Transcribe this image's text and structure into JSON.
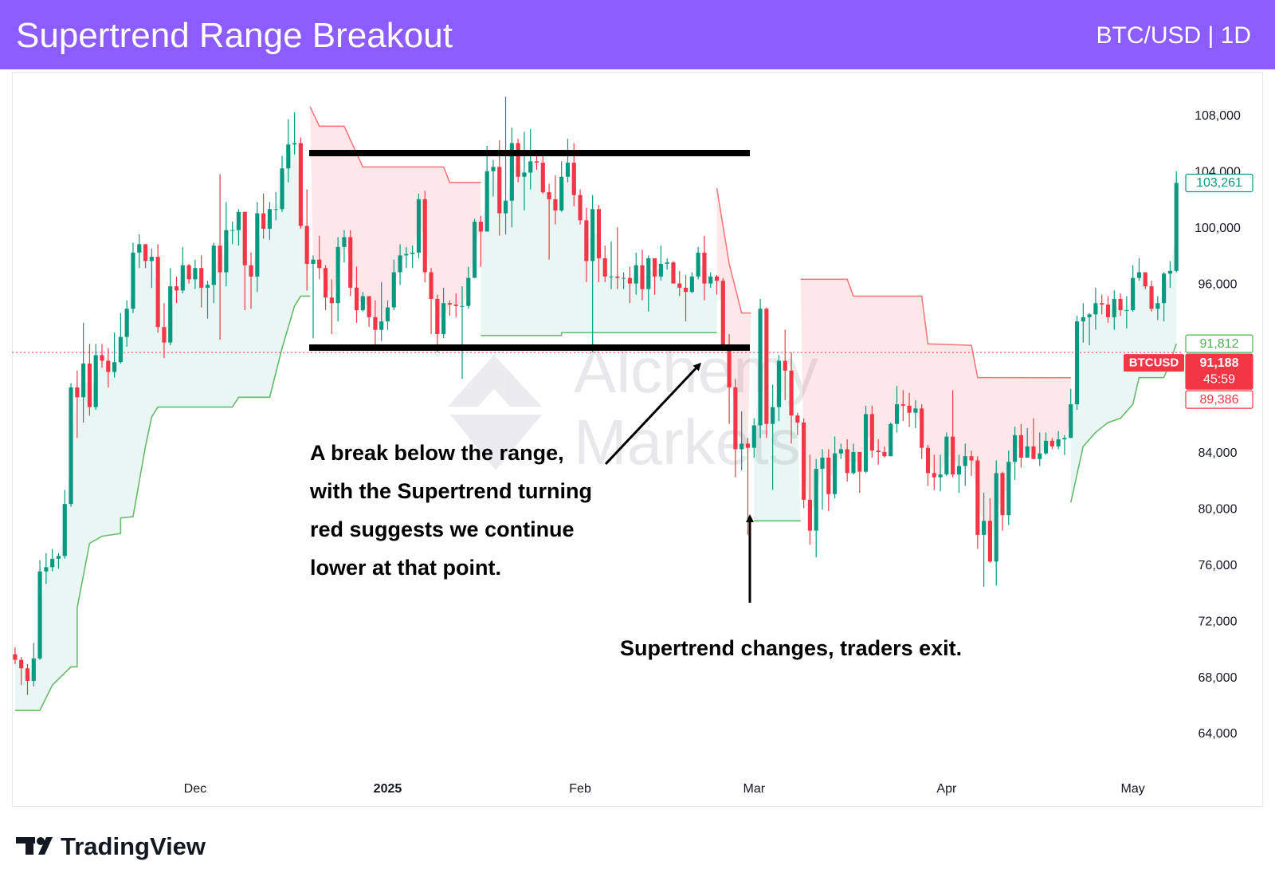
{
  "chart_data": {
    "type": "candlestick",
    "title": "Supertrend Range Breakout",
    "subtitle": "BTC/USD | 1D",
    "up_color": "#089981",
    "down_color": "#f23645",
    "xlim": [
      -0.5,
      188
    ],
    "xticks": [
      {
        "value": 29,
        "label": "Dec"
      },
      {
        "value": 60,
        "label": "2025"
      },
      {
        "value": 91,
        "label": "Feb"
      },
      {
        "value": 119,
        "label": "Mar"
      },
      {
        "value": 150,
        "label": "Apr"
      },
      {
        "value": 180,
        "label": "May"
      }
    ],
    "ylim": [
      60934,
      111293
    ],
    "yticks": [
      {
        "value": 64000,
        "label": "64,000"
      },
      {
        "value": 68000,
        "label": "68,000"
      },
      {
        "value": 72000,
        "label": "72,000"
      },
      {
        "value": 76000,
        "label": "76,000"
      },
      {
        "value": 80000,
        "label": "80,000"
      },
      {
        "value": 84000,
        "label": "84,000"
      },
      {
        "value": 88000,
        "label": "88,000"
      },
      {
        "value": 92000,
        "label": "92,000"
      },
      {
        "value": 96000,
        "label": "96,000"
      },
      {
        "value": 100000,
        "label": "100,000"
      },
      {
        "value": 104000,
        "label": "104,000"
      },
      {
        "value": 108000,
        "label": "108,000"
      }
    ],
    "candles": [
      [
        69700,
        70200,
        69000,
        69300
      ],
      [
        69300,
        69500,
        67500,
        68700
      ],
      [
        68700,
        69000,
        66800,
        67800
      ],
      [
        67800,
        70500,
        67400,
        69400
      ],
      [
        69400,
        76400,
        69300,
        75600
      ],
      [
        75600,
        76900,
        74700,
        75900
      ],
      [
        75900,
        77200,
        75600,
        76500
      ],
      [
        76500,
        76900,
        75800,
        76700
      ],
      [
        76700,
        81400,
        76500,
        80400
      ],
      [
        80400,
        89000,
        80200,
        88700
      ],
      [
        88700,
        89900,
        85100,
        88000
      ],
      [
        88000,
        93300,
        86200,
        90400
      ],
      [
        90400,
        91800,
        86700,
        87300
      ],
      [
        87300,
        91800,
        87100,
        91000
      ],
      [
        91000,
        91800,
        90100,
        90600
      ],
      [
        90600,
        91500,
        88700,
        89800
      ],
      [
        89800,
        92600,
        89400,
        90500
      ],
      [
        90500,
        94000,
        90400,
        92300
      ],
      [
        92300,
        94900,
        91600,
        94300
      ],
      [
        94300,
        99000,
        94000,
        98300
      ],
      [
        98300,
        99600,
        97200,
        98900
      ],
      [
        98900,
        98900,
        97200,
        97700
      ],
      [
        97700,
        98600,
        95800,
        98000
      ],
      [
        98000,
        98900,
        92600,
        93000
      ],
      [
        93000,
        94700,
        90800,
        91900
      ],
      [
        91900,
        97200,
        91700,
        95900
      ],
      [
        95900,
        96600,
        94700,
        95600
      ],
      [
        95600,
        98700,
        95400,
        97400
      ],
      [
        97400,
        97500,
        96100,
        96400
      ],
      [
        96400,
        97800,
        95700,
        97200
      ],
      [
        97200,
        98100,
        94400,
        95800
      ],
      [
        95800,
        96300,
        93600,
        96000
      ],
      [
        96000,
        99000,
        94700,
        98800
      ],
      [
        98800,
        103900,
        92100,
        96900
      ],
      [
        96900,
        101900,
        95900,
        99900
      ],
      [
        99900,
        100500,
        98900,
        99900
      ],
      [
        99900,
        101400,
        98800,
        101200
      ],
      [
        101200,
        101200,
        94200,
        97400
      ],
      [
        97400,
        98300,
        94300,
        96600
      ],
      [
        96600,
        101900,
        95500,
        101100
      ],
      [
        101100,
        102500,
        99300,
        100000
      ],
      [
        100000,
        101900,
        99200,
        101400
      ],
      [
        101400,
        102600,
        100600,
        101400
      ],
      [
        101400,
        105200,
        101200,
        104300
      ],
      [
        104300,
        107800,
        103300,
        106000
      ],
      [
        106000,
        108300,
        105300,
        106100
      ],
      [
        106100,
        106500,
        100000,
        100200
      ],
      [
        100200,
        102800,
        95600,
        97500
      ],
      [
        97500,
        98100,
        92200,
        97800
      ],
      [
        97800,
        99500,
        96400,
        97200
      ],
      [
        97200,
        97400,
        94200,
        95100
      ],
      [
        95100,
        96400,
        92500,
        94700
      ],
      [
        94700,
        99400,
        93400,
        98700
      ],
      [
        98700,
        99900,
        97600,
        99400
      ],
      [
        99400,
        99900,
        95200,
        95800
      ],
      [
        95800,
        97300,
        93300,
        94200
      ],
      [
        94200,
        95500,
        94100,
        95200
      ],
      [
        95200,
        95200,
        93000,
        93700
      ],
      [
        93700,
        94900,
        91400,
        92800
      ],
      [
        92800,
        96200,
        92000,
        93400
      ],
      [
        93400,
        94900,
        92800,
        94400
      ],
      [
        94400,
        97800,
        94200,
        96900
      ],
      [
        96900,
        98900,
        96000,
        98100
      ],
      [
        98100,
        98700,
        97200,
        98200
      ],
      [
        98200,
        98800,
        97200,
        98300
      ],
      [
        98300,
        102500,
        97900,
        102100
      ],
      [
        102100,
        102700,
        96200,
        96900
      ],
      [
        96900,
        97200,
        92500,
        95000
      ],
      [
        95000,
        95300,
        91200,
        92500
      ],
      [
        92500,
        95800,
        92200,
        94700
      ],
      [
        94700,
        94900,
        93800,
        94600
      ],
      [
        94600,
        95400,
        93700,
        94500
      ],
      [
        94500,
        95900,
        89300,
        94500
      ],
      [
        94500,
        97300,
        94300,
        96500
      ],
      [
        96500,
        100700,
        96500,
        100500
      ],
      [
        100500,
        100900,
        97300,
        99800
      ],
      [
        99800,
        105900,
        99800,
        104100
      ],
      [
        104100,
        104900,
        102300,
        104400
      ],
      [
        104400,
        106300,
        99500,
        101100
      ],
      [
        101100,
        109400,
        99600,
        102000
      ],
      [
        102000,
        107200,
        100100,
        106100
      ],
      [
        106100,
        106400,
        103300,
        103700
      ],
      [
        103700,
        106900,
        101300,
        104000
      ],
      [
        104000,
        107100,
        102800,
        104800
      ],
      [
        104800,
        105300,
        104200,
        104700
      ],
      [
        104700,
        105500,
        102500,
        102600
      ],
      [
        102600,
        103200,
        97800,
        102100
      ],
      [
        102100,
        103800,
        100300,
        101300
      ],
      [
        101300,
        104800,
        101200,
        103700
      ],
      [
        103700,
        106400,
        103300,
        104700
      ],
      [
        104700,
        106100,
        101600,
        102400
      ],
      [
        102400,
        102800,
        100300,
        100600
      ],
      [
        100600,
        101500,
        96200,
        97700
      ],
      [
        97700,
        102400,
        91200,
        101400
      ],
      [
        101400,
        101700,
        96200,
        97900
      ],
      [
        97900,
        98800,
        96200,
        96600
      ],
      [
        96600,
        99100,
        95700,
        96600
      ],
      [
        96600,
        100100,
        95700,
        96500
      ],
      [
        96500,
        96900,
        95700,
        96500
      ],
      [
        96500,
        97300,
        94700,
        96100
      ],
      [
        96100,
        98300,
        95300,
        97400
      ],
      [
        97400,
        98500,
        94900,
        95700
      ],
      [
        95700,
        98100,
        94100,
        97900
      ],
      [
        97900,
        97900,
        95300,
        96600
      ],
      [
        96600,
        98800,
        96300,
        97500
      ],
      [
        97500,
        97900,
        97100,
        97600
      ],
      [
        97600,
        97700,
        96100,
        96100
      ],
      [
        96100,
        97000,
        95200,
        95800
      ],
      [
        95800,
        96700,
        93400,
        95500
      ],
      [
        95500,
        96900,
        95400,
        96600
      ],
      [
        96600,
        98700,
        96400,
        98300
      ],
      [
        98300,
        99500,
        94900,
        96100
      ],
      [
        96100,
        96900,
        95800,
        96600
      ],
      [
        96600,
        96700,
        95300,
        96300
      ],
      [
        96300,
        96500,
        91300,
        91500
      ],
      [
        91500,
        92500,
        86100,
        88700
      ],
      [
        88700,
        89300,
        82300,
        84300
      ],
      [
        84300,
        87000,
        82800,
        84700
      ],
      [
        84700,
        85100,
        78200,
        84400
      ],
      [
        84400,
        86500,
        83700,
        86000
      ],
      [
        86000,
        95000,
        85100,
        94300
      ],
      [
        94300,
        94400,
        85100,
        86100
      ],
      [
        86100,
        88900,
        81400,
        87300
      ],
      [
        87300,
        91000,
        86300,
        90600
      ],
      [
        90600,
        92800,
        87800,
        89900
      ],
      [
        89900,
        91200,
        84700,
        86700
      ],
      [
        86700,
        86900,
        85300,
        86200
      ],
      [
        86200,
        86500,
        80100,
        80700
      ],
      [
        80700,
        83900,
        77500,
        78500
      ],
      [
        78500,
        83600,
        76600,
        82900
      ],
      [
        82900,
        84300,
        80000,
        83700
      ],
      [
        83700,
        84300,
        79900,
        81100
      ],
      [
        81100,
        85200,
        80800,
        84000
      ],
      [
        84000,
        84700,
        83600,
        84300
      ],
      [
        84300,
        85000,
        82000,
        82600
      ],
      [
        82600,
        84700,
        82500,
        84100
      ],
      [
        84100,
        84100,
        81200,
        82700
      ],
      [
        82700,
        87400,
        82600,
        86800
      ],
      [
        86800,
        87400,
        83700,
        84200
      ],
      [
        84200,
        85000,
        83200,
        84100
      ],
      [
        84100,
        84500,
        83700,
        83800
      ],
      [
        83800,
        86200,
        83800,
        86100
      ],
      [
        86100,
        88800,
        85500,
        87500
      ],
      [
        87500,
        88500,
        86300,
        87400
      ],
      [
        87400,
        88300,
        85900,
        86900
      ],
      [
        86900,
        87800,
        85800,
        87200
      ],
      [
        87200,
        87500,
        83600,
        84400
      ],
      [
        84400,
        84600,
        81700,
        82600
      ],
      [
        82600,
        83900,
        81400,
        82300
      ],
      [
        82300,
        83900,
        81300,
        82500
      ],
      [
        82500,
        85500,
        82400,
        85200
      ],
      [
        85200,
        88500,
        82300,
        82500
      ],
      [
        82500,
        83900,
        81200,
        83100
      ],
      [
        83100,
        84700,
        81700,
        83800
      ],
      [
        83800,
        84200,
        82400,
        83500
      ],
      [
        83500,
        83800,
        77200,
        78200
      ],
      [
        78200,
        81200,
        74500,
        79200
      ],
      [
        79200,
        80800,
        76200,
        76300
      ],
      [
        76300,
        83500,
        74600,
        82600
      ],
      [
        82600,
        82700,
        78500,
        79600
      ],
      [
        79600,
        84200,
        78900,
        83400
      ],
      [
        83400,
        85900,
        82100,
        85300
      ],
      [
        85300,
        86100,
        83000,
        83700
      ],
      [
        83700,
        85800,
        83700,
        84500
      ],
      [
        84500,
        86500,
        83600,
        83600
      ],
      [
        83600,
        85500,
        83100,
        84000
      ],
      [
        84000,
        85500,
        83900,
        84900
      ],
      [
        84900,
        85100,
        84300,
        84500
      ],
      [
        84500,
        85600,
        84300,
        85000
      ],
      [
        85000,
        85300,
        83900,
        85100
      ],
      [
        85100,
        88600,
        85100,
        87500
      ],
      [
        87500,
        93800,
        87100,
        93400
      ],
      [
        93400,
        94700,
        91900,
        93700
      ],
      [
        93700,
        94000,
        91700,
        93900
      ],
      [
        93900,
        95800,
        92800,
        94700
      ],
      [
        94700,
        95300,
        93900,
        94600
      ],
      [
        94600,
        95200,
        93300,
        93700
      ],
      [
        93700,
        95600,
        92800,
        95000
      ],
      [
        95000,
        95400,
        93800,
        94200
      ],
      [
        94200,
        95200,
        92900,
        94200
      ],
      [
        94200,
        97400,
        94100,
        96500
      ],
      [
        96500,
        97900,
        96300,
        96900
      ],
      [
        96900,
        96900,
        95700,
        95900
      ],
      [
        95900,
        96300,
        94100,
        94300
      ],
      [
        94300,
        95200,
        93500,
        94700
      ],
      [
        94700,
        96900,
        93400,
        96800
      ],
      [
        96800,
        97700,
        95800,
        97000
      ],
      [
        97000,
        104100,
        96900,
        103261
      ]
    ],
    "supertrend": [
      {
        "color": "#66bb6a",
        "fill": "rgba(8,153,129,0.09)",
        "x": [
          0,
          4,
          6,
          9,
          10,
          10,
          12,
          14,
          17,
          17,
          19,
          20,
          21,
          22,
          23,
          35,
          36,
          41,
          43,
          45,
          46,
          47.5,
          null,
          75,
          88,
          88,
          113,
          null,
          119,
          126.5,
          null,
          170,
          172,
          174,
          176,
          178,
          180,
          181,
          185,
          186,
          187
        ],
        "values": [
          65700,
          65700,
          67500,
          68800,
          68800,
          73000,
          77600,
          78100,
          78300,
          79400,
          79500,
          82000,
          84500,
          86600,
          87300,
          87300,
          88000,
          88000,
          91500,
          94500,
          95200,
          95200,
          null,
          92400,
          92400,
          92600,
          92600,
          null,
          79200,
          79200,
          null,
          80500,
          84500,
          85500,
          86200,
          86500,
          87500,
          89400,
          89400,
          90500,
          91812
        ]
      },
      {
        "color": "#f7787f",
        "fill": "rgba(242,54,69,0.12)",
        "x": [
          47.5,
          49,
          53,
          56,
          69,
          70,
          75,
          null,
          113,
          115,
          117,
          118.5,
          null,
          126.5,
          134,
          135,
          146,
          147,
          154,
          155,
          170
        ],
        "values": [
          108700,
          107300,
          107300,
          104400,
          104400,
          103300,
          103300,
          null,
          102900,
          97500,
          94000,
          94000,
          null,
          96400,
          96400,
          95200,
          95200,
          91800,
          91700,
          89400,
          89386
        ]
      }
    ],
    "price_labels": [
      {
        "value": 103261,
        "label": "103,261",
        "color": "#089981",
        "style": "outline"
      },
      {
        "value": 91812,
        "label": "91,812",
        "color": "#4caf50",
        "style": "outline"
      },
      {
        "name": "BTCUSD",
        "value": 91188,
        "label": "91,188",
        "countdown": "45:59",
        "color": "#f23645",
        "style": "filled"
      },
      {
        "value": 89386,
        "label": "89,386",
        "color": "#f23645",
        "style": "outline"
      }
    ],
    "annotations": [
      [
        "A break below the range,",
        "with the Supertrend turning",
        "red suggests we continue",
        "lower at that point."
      ],
      [
        "Supertrend changes, traders exit."
      ]
    ],
    "watermark": [
      "Alchemy",
      "Markets"
    ]
  },
  "footer": {
    "brand": "TradingView"
  }
}
